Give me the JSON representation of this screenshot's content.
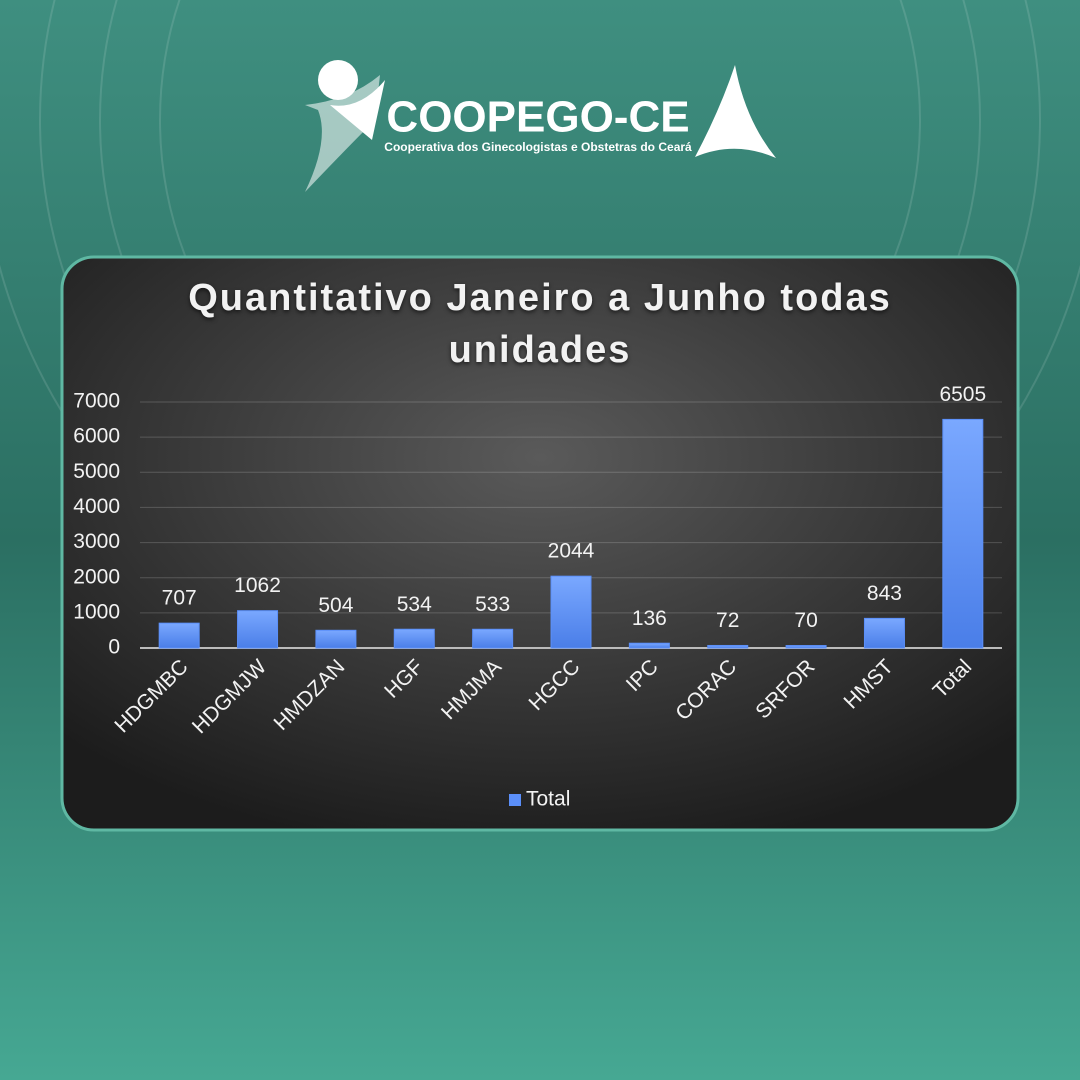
{
  "brand": {
    "name": "COOPEGO-CE",
    "tagline": "Cooperativa dos Ginecologistas e Obstetras do Ceará"
  },
  "chart_data": {
    "type": "bar",
    "title": "Quantitativo Janeiro a Junho todas unidades",
    "categories": [
      "HDGMBC",
      "HDGMJW",
      "HMDZAN",
      "HGF",
      "HMJMA",
      "HGCC",
      "IPC",
      "CORAC",
      "SRFOR",
      "HMST",
      "Total"
    ],
    "series": [
      {
        "name": "Total",
        "color": "#5b8ff9",
        "values": [
          707,
          1062,
          504,
          534,
          533,
          2044,
          136,
          72,
          70,
          843,
          6505
        ]
      }
    ],
    "ylim": [
      0,
      7000
    ],
    "yticks": [
      0,
      1000,
      2000,
      3000,
      4000,
      5000,
      6000,
      7000
    ],
    "grid": true,
    "legend": "bottom"
  }
}
